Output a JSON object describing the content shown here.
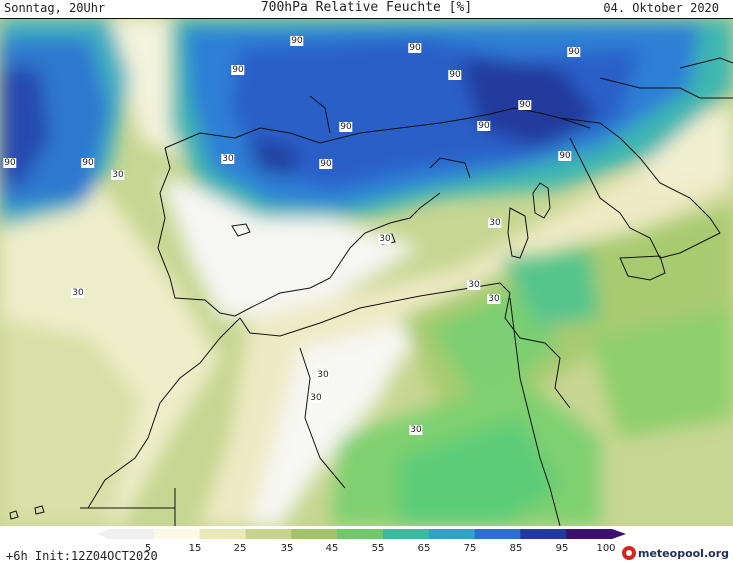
{
  "header": {
    "left": "Sonntag, 20Uhr",
    "title": "700hPa Relative Feuchte [%]",
    "date": "04. Oktober 2020"
  },
  "map": {
    "region": "Western Mediterranean",
    "contour_labels": [
      "90",
      "90",
      "90",
      "90",
      "90",
      "90",
      "90",
      "90",
      "90",
      "90",
      "90",
      "90",
      "30",
      "30",
      "30",
      "30",
      "30",
      "30",
      "30",
      "30",
      "30",
      "30"
    ]
  },
  "legend": {
    "ticks": [
      "5",
      "15",
      "25",
      "35",
      "45",
      "55",
      "65",
      "75",
      "85",
      "95",
      "100"
    ],
    "colors": [
      "#f0f0f0",
      "#fafae6",
      "#ebe9b8",
      "#c8d48c",
      "#a3c26a",
      "#6fc96b",
      "#3fb8a0",
      "#36a1c8",
      "#2c6fd0",
      "#213a9c",
      "#3a1070"
    ]
  },
  "footer": {
    "run_info": "+6h  Init:12Z04OCT2020",
    "logo_text": "meteopool.org"
  }
}
